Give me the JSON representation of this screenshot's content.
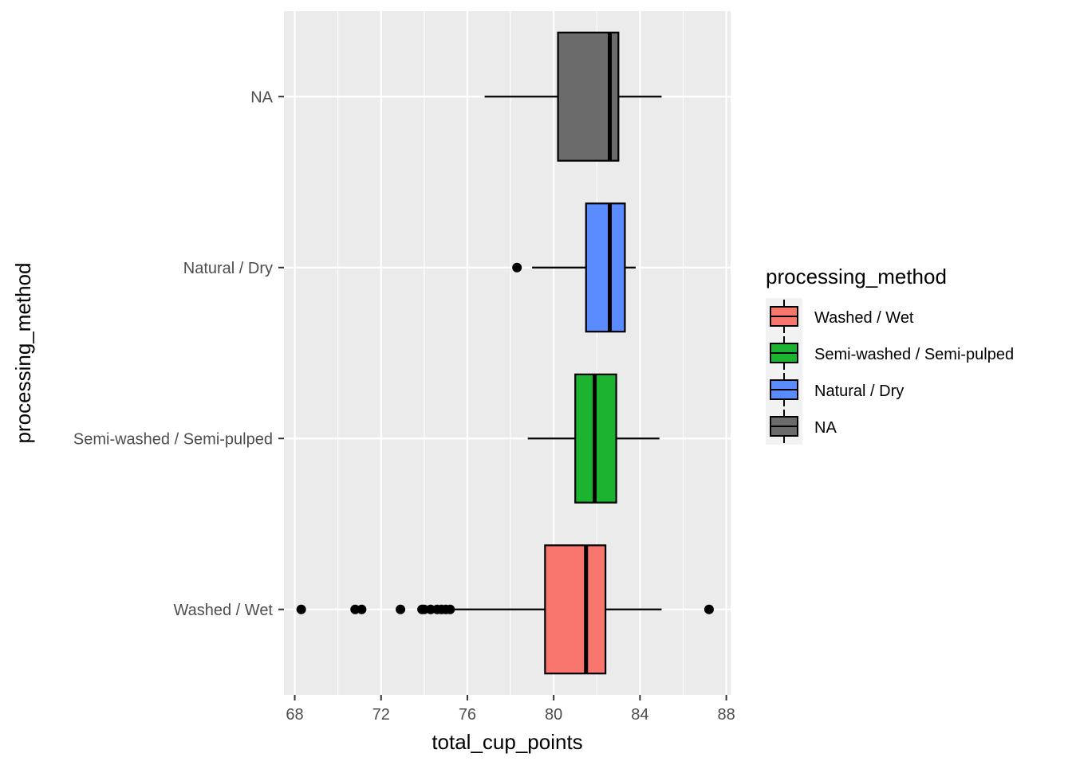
{
  "chart_data": {
    "type": "boxplot",
    "orientation": "horizontal",
    "xlabel": "total_cup_points",
    "ylabel": "processing_method",
    "xlim": [
      67.5,
      88.2
    ],
    "xticks": [
      68,
      72,
      76,
      80,
      84,
      88
    ],
    "grid": true,
    "legend": {
      "title": "processing_method",
      "position": "right",
      "entries": [
        {
          "label": "Washed / Wet",
          "color": "#F8766D"
        },
        {
          "label": "Semi-washed / Semi-pulped",
          "color": "#1BB32F"
        },
        {
          "label": "Natural / Dry",
          "color": "#5B8CFF"
        },
        {
          "label": "NA",
          "color": "#6B6B6B"
        }
      ]
    },
    "categories": [
      "Washed / Wet",
      "Semi-washed / Semi-pulped",
      "Natural / Dry",
      "NA"
    ],
    "series": [
      {
        "category": "Washed / Wet",
        "color": "#F8766D",
        "whisker_low": 75.3,
        "q1": 79.6,
        "median": 81.5,
        "q3": 82.4,
        "whisker_high": 85.0,
        "outliers": [
          68.3,
          70.8,
          71.1,
          72.9,
          73.9,
          74.0,
          74.3,
          74.6,
          74.8,
          75.0,
          75.2,
          87.2
        ]
      },
      {
        "category": "Semi-washed / Semi-pulped",
        "color": "#1BB32F",
        "whisker_low": 78.8,
        "q1": 81.0,
        "median": 81.9,
        "q3": 82.9,
        "whisker_high": 84.9,
        "outliers": []
      },
      {
        "category": "Natural / Dry",
        "color": "#5B8CFF",
        "whisker_low": 79.0,
        "q1": 81.5,
        "median": 82.6,
        "q3": 83.3,
        "whisker_high": 83.8,
        "outliers": [
          78.3
        ]
      },
      {
        "category": "NA",
        "color": "#6B6B6B",
        "whisker_low": 76.8,
        "q1": 80.2,
        "median": 82.6,
        "q3": 83.0,
        "whisker_high": 85.0,
        "outliers": []
      }
    ]
  }
}
